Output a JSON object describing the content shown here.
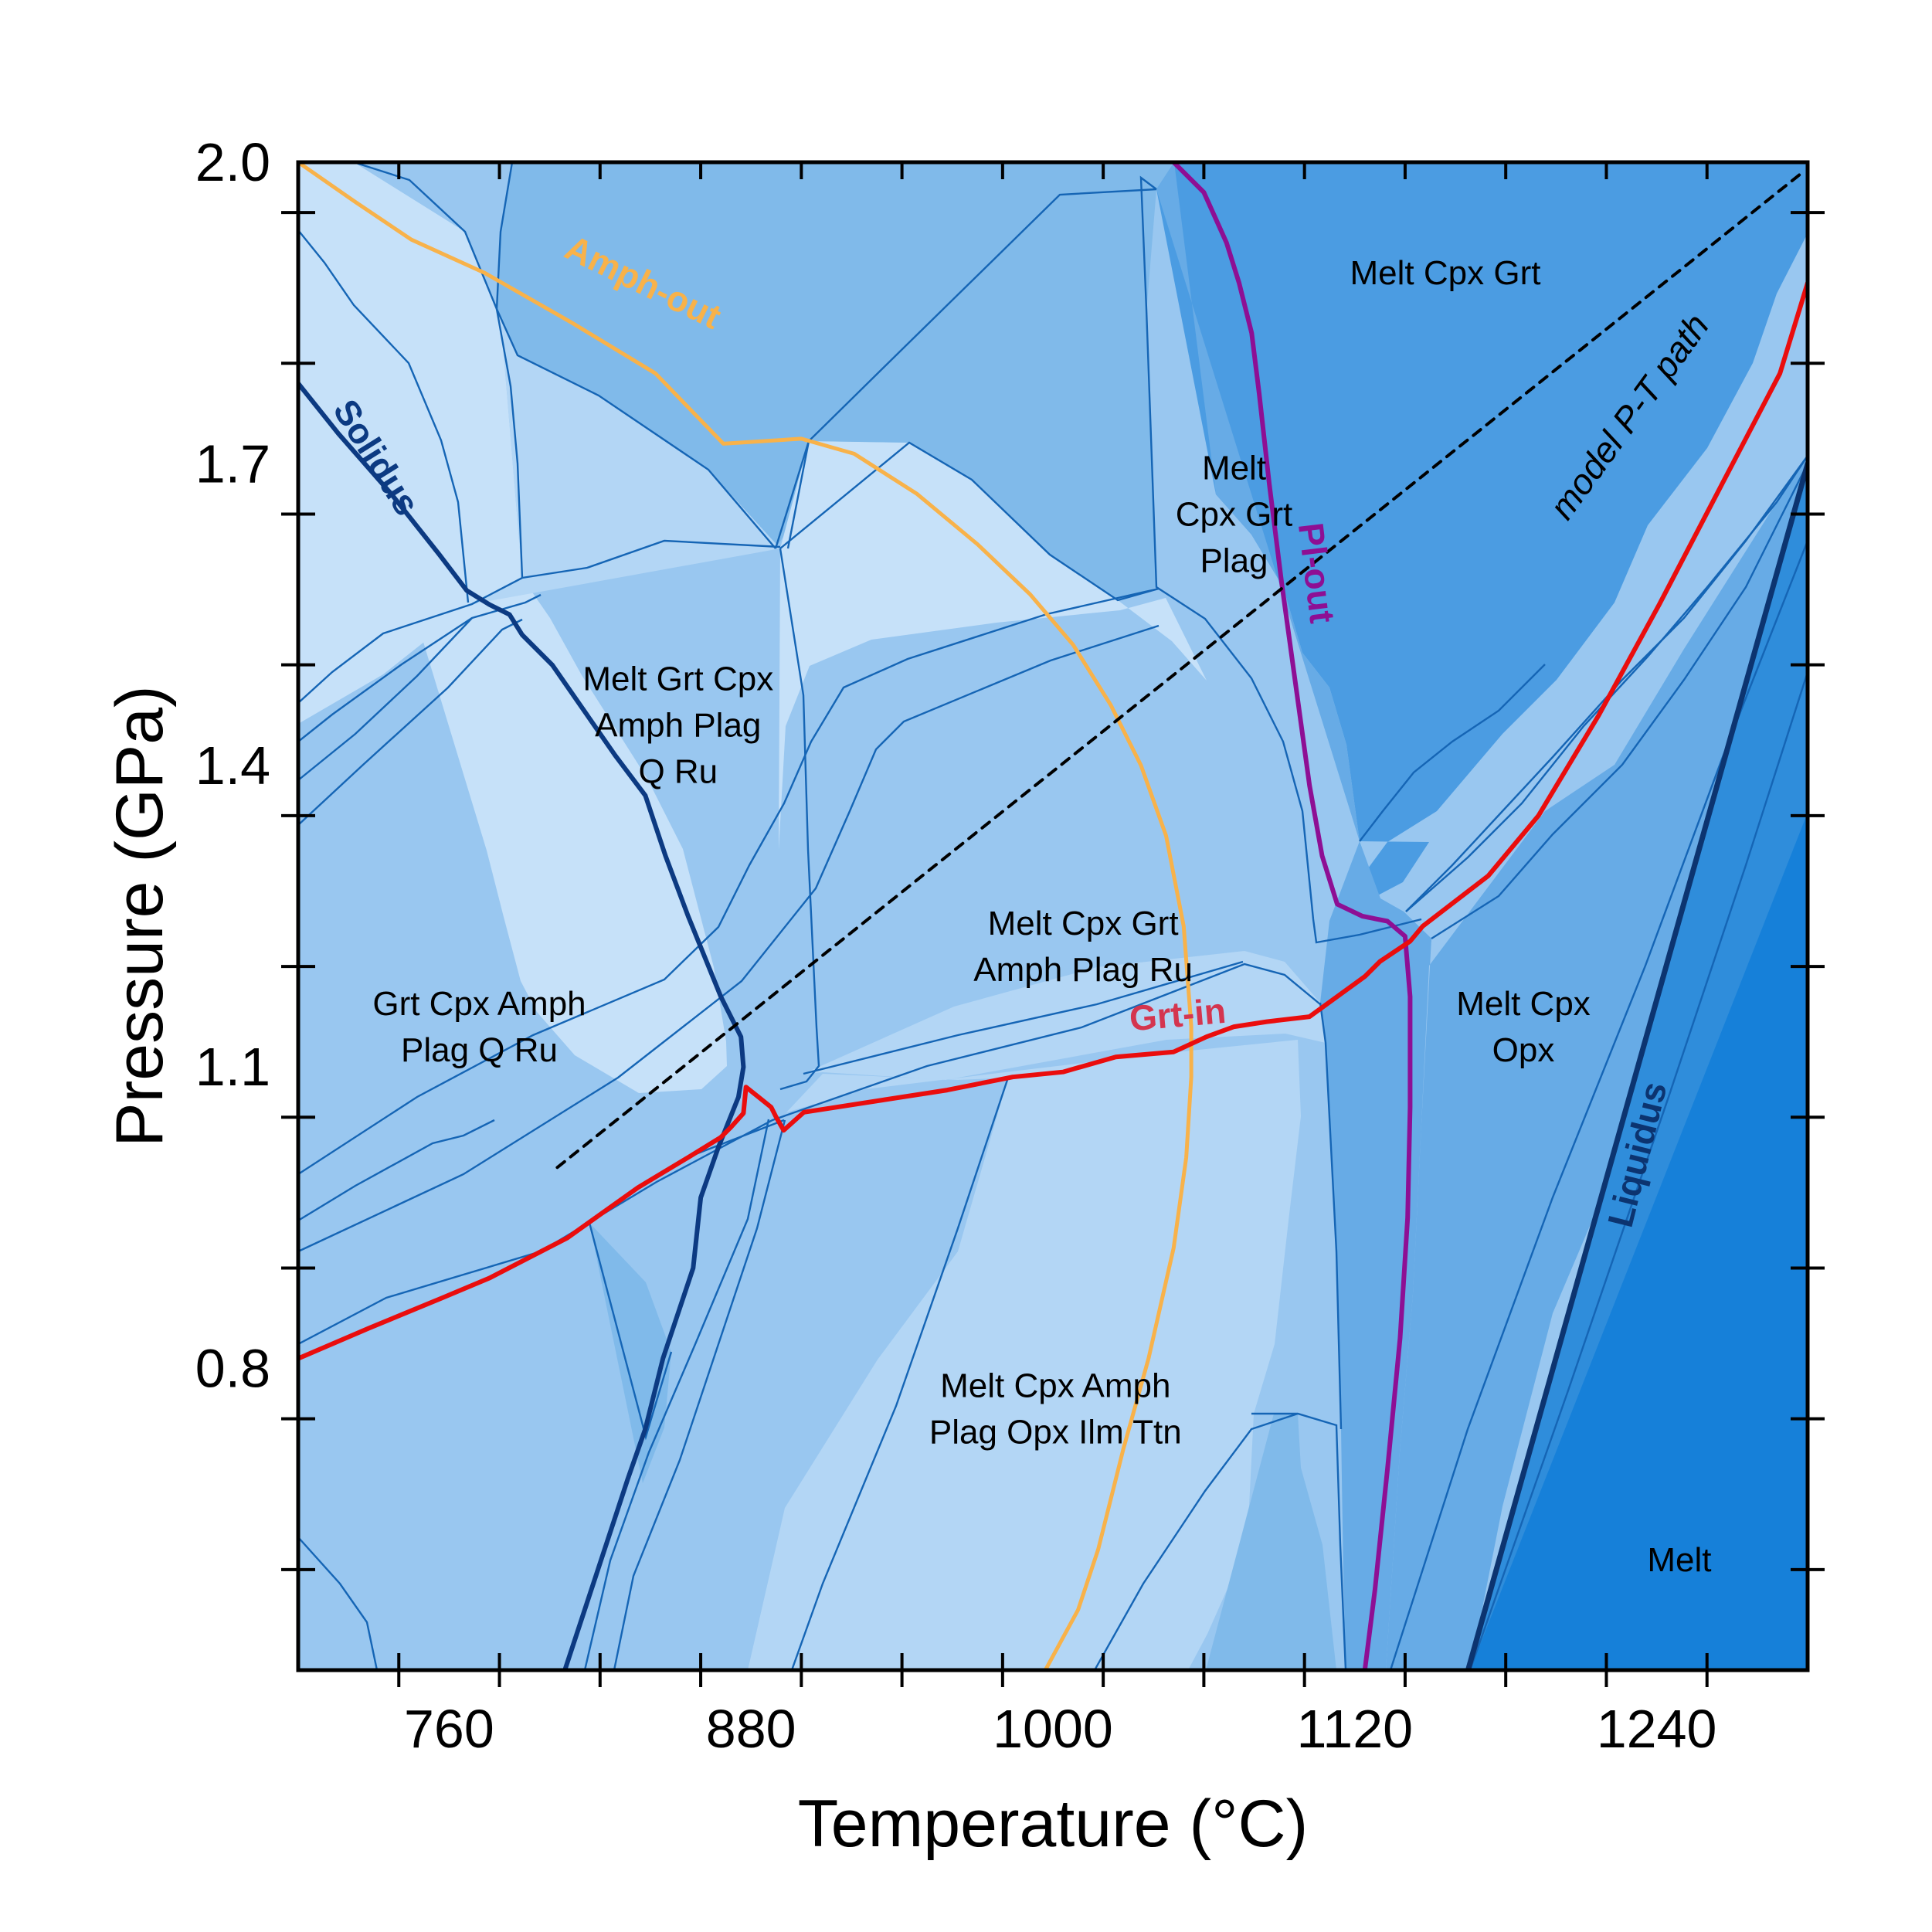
{
  "chart_data": {
    "type": "phase-diagram",
    "xlabel": "Temperature (°C)",
    "ylabel": "Pressure (GPa)",
    "xlim": [
      700,
      1300
    ],
    "ylim": [
      0.5,
      2.0
    ],
    "xticks": [
      760,
      880,
      1000,
      1120,
      1240
    ],
    "xtick_labels": [
      "760",
      "880",
      "1000",
      "1120",
      "1240"
    ],
    "yticks": [
      0.8,
      1.1,
      1.4,
      1.7,
      2.0
    ],
    "ytick_labels": [
      "0.8",
      "1.1",
      "1.4",
      "1.7",
      "2.0"
    ],
    "grid": false,
    "colors": {
      "c1": "#c6e1f9",
      "c2": "#b3d6f5",
      "c3": "#99c7f0",
      "c4": "#80baea",
      "c5": "#67abe6",
      "c6": "#4b9ce2",
      "c7": "#2f8ddb",
      "c8": "#1680d9",
      "boundary": "#1565b5",
      "solidus": "#0c3a82",
      "liquidus": "#0c3470",
      "amph_out": "#f8b24a",
      "pl_out": "#8e0f94",
      "grt_in": "#ea0d0d",
      "path": "#000000"
    },
    "fields": [
      {
        "label": "Melt Cpx Grt",
        "lines": [
          "Melt Cpx Grt"
        ],
        "fill": "c6",
        "at": [
          1156,
          1.89
        ]
      },
      {
        "label": "Melt Cpx Grt Plag",
        "lines": [
          "Melt",
          "Cpx Grt",
          "Plag"
        ],
        "fill": "c5",
        "at": [
          1072,
          1.65
        ]
      },
      {
        "label": "Melt Grt Cpx Amph Plag Q Ru",
        "lines": [
          "Melt Grt Cpx",
          "Amph Plag",
          "Q Ru"
        ],
        "fill": "c1",
        "at": [
          851,
          1.44
        ]
      },
      {
        "label": "Melt Cpx Grt Amph Plag Ru",
        "lines": [
          "Melt Cpx Grt",
          "Amph Plag Ru"
        ],
        "fill": "c3",
        "at": [
          1012,
          1.22
        ]
      },
      {
        "label": "Grt Cpx Amph Plag Q Ru",
        "lines": [
          "Grt Cpx Amph",
          "Plag Q Ru"
        ],
        "fill": "c3",
        "at": [
          772,
          1.14
        ]
      },
      {
        "label": "Melt Cpx Opx",
        "lines": [
          "Melt Cpx",
          "Opx"
        ],
        "fill": "c6",
        "at": [
          1187,
          1.14
        ]
      },
      {
        "label": "Melt Cpx Amph Plag Opx Ilm Ttn",
        "lines": [
          "Melt Cpx Amph",
          "Plag Opx Ilm Ttn"
        ],
        "fill": "c2",
        "at": [
          1001,
          0.76
        ]
      },
      {
        "label": "Melt",
        "lines": [
          "Melt"
        ],
        "fill": "c8",
        "at": [
          1249,
          0.61
        ]
      }
    ],
    "series": [
      {
        "name": "Solidus",
        "kind": "solidus",
        "x": [
          700,
          716,
          737,
          756,
          767,
          776,
          784,
          789,
          801,
          826,
          838,
          846,
          855,
          868,
          876,
          877,
          875,
          867,
          860,
          857,
          845,
          838,
          831,
          806
        ],
        "y": [
          1.78,
          1.73,
          1.67,
          1.61,
          1.574,
          1.56,
          1.55,
          1.53,
          1.5,
          1.41,
          1.37,
          1.31,
          1.25,
          1.17,
          1.13,
          1.1,
          1.07,
          1.02,
          0.97,
          0.9,
          0.81,
          0.74,
          0.69,
          0.5
        ]
      },
      {
        "name": "Liquidus",
        "kind": "liquidus",
        "x": [
          1165,
          1300
        ],
        "y": [
          0.5,
          1.7
        ]
      },
      {
        "name": "Amph-out",
        "kind": "amph_out",
        "x": [
          700,
          723,
          745,
          774,
          809,
          842,
          869,
          900,
          921,
          946,
          970,
          991,
          1008,
          1023,
          1035,
          1045,
          1052,
          1055,
          1055,
          1053,
          1048,
          1038,
          1028,
          1018,
          1010,
          997,
          1052,
          1030,
          1043,
          1054,
          1040,
          1015,
          1000
        ],
        "y": [
          2.0,
          1.96,
          1.923,
          1.89,
          1.84,
          1.79,
          1.72,
          1.725,
          1.71,
          1.67,
          1.62,
          1.57,
          1.52,
          1.46,
          1.4,
          1.33,
          1.24,
          1.14,
          1.09,
          1.01,
          0.92,
          0.81,
          0.72,
          0.62,
          0.56,
          0.5,
          1.23,
          1.5,
          1.35,
          1.15,
          0.85,
          0.62,
          0.52
        ]
      },
      {
        "name": "Pl-out",
        "kind": "pl_out",
        "x": [
          1048,
          1060,
          1069,
          1074,
          1079,
          1082,
          1086,
          1091,
          1102,
          1107,
          1113,
          1123,
          1133,
          1140,
          1142,
          1142,
          1141,
          1138,
          1133,
          1128,
          1124
        ],
        "y": [
          2.0,
          1.97,
          1.92,
          1.88,
          1.83,
          1.77,
          1.68,
          1.58,
          1.38,
          1.31,
          1.262,
          1.25,
          1.245,
          1.23,
          1.17,
          1.06,
          0.95,
          0.83,
          0.7,
          0.58,
          0.5
        ]
      },
      {
        "name": "Grt-in",
        "kind": "grt_in",
        "x": [
          700,
          728,
          757,
          776,
          807,
          835,
          855,
          868,
          872,
          877,
          878,
          883,
          888,
          890,
          893,
          901,
          958,
          984,
          1004,
          1025,
          1048,
          1061,
          1072,
          1085,
          1102,
          1124,
          1130,
          1142,
          1147,
          1173,
          1193,
          1217,
          1241,
          1266,
          1289,
          1300
        ],
        "y": [
          0.81,
          0.84,
          0.87,
          0.89,
          0.93,
          0.98,
          1.01,
          1.03,
          1.04,
          1.054,
          1.08,
          1.07,
          1.06,
          1.05,
          1.037,
          1.055,
          1.077,
          1.09,
          1.095,
          1.11,
          1.115,
          1.13,
          1.14,
          1.145,
          1.15,
          1.19,
          1.205,
          1.225,
          1.24,
          1.29,
          1.35,
          1.45,
          1.56,
          1.68,
          1.79,
          1.88
        ]
      },
      {
        "name": "model P-T path",
        "kind": "path",
        "x": [
          803,
          1298
        ],
        "y": [
          1.0,
          1.99
        ]
      }
    ],
    "curve_labels": [
      {
        "name": "Solidus",
        "kind": "solidus",
        "at": [
          727,
          1.7
        ],
        "rotate": 58
      },
      {
        "name": "Amph-out",
        "kind": "amph_out",
        "at": [
          835,
          1.87
        ],
        "rotate": 26
      },
      {
        "name": "Pl-out",
        "kind": "pl_out",
        "at": [
          1100,
          1.59
        ],
        "rotate": 83
      },
      {
        "name": "Grt-in",
        "kind": "grt_in",
        "at": [
          1050,
          1.14
        ],
        "rotate": -5
      },
      {
        "name": "model P-T path",
        "kind": "path",
        "at": [
          1233,
          1.74
        ],
        "rotate": -54
      },
      {
        "name": "Liquidus",
        "kind": "liquidus",
        "at": [
          1237,
          1.01
        ],
        "rotate": -76
      }
    ]
  }
}
